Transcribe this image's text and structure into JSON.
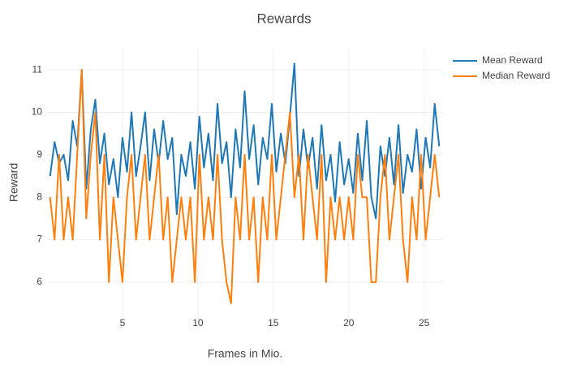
{
  "chart_data": {
    "type": "line",
    "title": "Rewards",
    "x_label": "Frames in Mio.",
    "y_label": "Reward",
    "x": [
      0.2,
      0.5,
      0.8,
      1.1,
      1.4,
      1.7,
      2.0,
      2.3,
      2.6,
      2.9,
      3.2,
      3.5,
      3.8,
      4.1,
      4.4,
      4.7,
      5.0,
      5.3,
      5.6,
      5.9,
      6.2,
      6.5,
      6.8,
      7.1,
      7.4,
      7.7,
      8.0,
      8.3,
      8.6,
      8.9,
      9.2,
      9.5,
      9.8,
      10.1,
      10.4,
      10.7,
      11.0,
      11.3,
      11.6,
      11.9,
      12.2,
      12.5,
      12.8,
      13.1,
      13.4,
      13.7,
      14.0,
      14.3,
      14.6,
      14.9,
      15.2,
      15.5,
      15.8,
      16.1,
      16.4,
      16.7,
      17.0,
      17.3,
      17.6,
      17.9,
      18.2,
      18.5,
      18.8,
      19.1,
      19.4,
      19.7,
      20.0,
      20.3,
      20.6,
      20.9,
      21.2,
      21.5,
      21.8,
      22.1,
      22.4,
      22.7,
      23.0,
      23.3,
      23.6,
      23.9,
      24.2,
      24.5,
      24.8,
      25.1,
      25.4,
      25.7,
      26.0
    ],
    "series": [
      {
        "name": "Mean Reward",
        "color": "#1f77b4",
        "values": [
          8.5,
          9.3,
          8.8,
          9.0,
          8.4,
          9.8,
          9.2,
          11.0,
          8.2,
          9.6,
          10.3,
          8.8,
          9.5,
          8.3,
          8.9,
          8.0,
          9.4,
          8.6,
          10.0,
          8.5,
          9.2,
          10.0,
          8.4,
          9.6,
          8.8,
          9.8,
          8.9,
          9.4,
          7.6,
          9.0,
          8.5,
          9.3,
          8.2,
          9.9,
          8.7,
          9.5,
          8.4,
          10.2,
          8.8,
          9.3,
          8.0,
          9.6,
          8.7,
          10.5,
          8.9,
          9.7,
          8.3,
          9.4,
          8.9,
          10.2,
          8.6,
          9.5,
          8.8,
          9.9,
          11.15,
          8.5,
          9.6,
          8.7,
          9.4,
          8.2,
          9.7,
          8.4,
          9.0,
          7.9,
          9.3,
          8.3,
          8.9,
          8.1,
          9.5,
          8.4,
          9.8,
          8.0,
          7.5,
          9.2,
          8.5,
          9.4,
          8.3,
          9.7,
          8.1,
          9.0,
          8.6,
          9.6,
          8.2,
          9.4,
          8.7,
          10.2,
          9.2
        ]
      },
      {
        "name": "Median Reward",
        "color": "#ff7f0e",
        "values": [
          8,
          7,
          9,
          7,
          8,
          7,
          9,
          11,
          7.5,
          9,
          10,
          7,
          9,
          6,
          8,
          7,
          6,
          8,
          9,
          7,
          8,
          9,
          7,
          8,
          9,
          7,
          8,
          6,
          7,
          8,
          7,
          8,
          6,
          9,
          7,
          8,
          7,
          9,
          7,
          6,
          5.5,
          8,
          7,
          9,
          7,
          8,
          6,
          8,
          7,
          9,
          7,
          8,
          9,
          10,
          8,
          9,
          7,
          9,
          8,
          7,
          9,
          6,
          8,
          7,
          8,
          7,
          8,
          7,
          9,
          8,
          8,
          6,
          6,
          8,
          9,
          7,
          8,
          9,
          7,
          6,
          8,
          7,
          9,
          7,
          8,
          9,
          8
        ]
      }
    ],
    "xlim": [
      0,
      26.2
    ],
    "ylim": [
      5.1,
      11.5
    ],
    "xticks": [
      5,
      10,
      15,
      20,
      25
    ],
    "yticks": [
      6,
      7,
      8,
      9,
      10,
      11
    ],
    "grid": true,
    "legend": "top-right"
  }
}
